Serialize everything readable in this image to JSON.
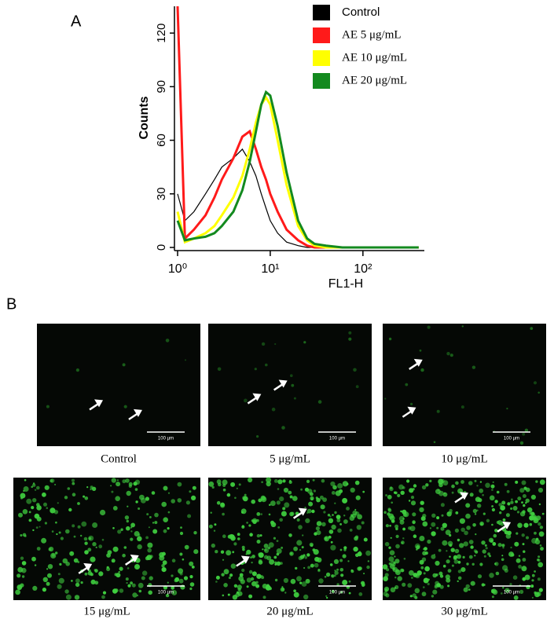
{
  "chart_data": {
    "type": "line",
    "panel_label": "A",
    "x_label": "FL1-H",
    "y_label": "Counts",
    "x": [
      1,
      1.2,
      1.5,
      2,
      2.5,
      3,
      4,
      5,
      6,
      7,
      8,
      9,
      10,
      12,
      15,
      20,
      25,
      30,
      40,
      60,
      100,
      200,
      400
    ],
    "xlim": [
      1,
      460
    ],
    "xscale": "log",
    "xticks": [
      {
        "value": 1,
        "label": "10⁰"
      },
      {
        "value": 10,
        "label": "10¹"
      },
      {
        "value": 100,
        "label": "10²"
      }
    ],
    "ylim": [
      0,
      135
    ],
    "yticks": [
      0,
      30,
      60,
      90,
      120
    ],
    "grid": false,
    "legend": "upper right",
    "series": [
      {
        "name": "Control",
        "color": "#000000",
        "values": [
          30,
          15,
          20,
          30,
          38,
          45,
          50,
          55,
          48,
          40,
          30,
          22,
          15,
          8,
          3,
          1,
          0,
          0,
          0,
          0,
          0,
          0,
          0
        ]
      },
      {
        "name": "AE 5 μg/mL",
        "color": "#ff1a1a",
        "values": [
          135,
          5,
          10,
          18,
          28,
          38,
          50,
          62,
          65,
          55,
          45,
          38,
          30,
          20,
          10,
          4,
          1,
          0,
          0,
          0,
          0,
          0,
          0
        ]
      },
      {
        "name": "AE 10 μg/mL",
        "color": "#ffff00",
        "values": [
          20,
          3,
          5,
          8,
          12,
          18,
          28,
          40,
          55,
          70,
          80,
          84,
          80,
          60,
          35,
          12,
          4,
          1,
          0,
          0,
          0,
          0,
          0
        ]
      },
      {
        "name": "AE 20 μg/mL",
        "color": "#138a1f",
        "values": [
          15,
          4,
          5,
          6,
          8,
          12,
          20,
          32,
          48,
          65,
          80,
          87,
          85,
          68,
          42,
          15,
          5,
          2,
          1,
          0,
          0,
          0,
          0
        ]
      }
    ]
  },
  "panel_b": {
    "label": "B",
    "micrographs": [
      {
        "caption": "Control",
        "scale_bar": "100 µm"
      },
      {
        "caption": "5 μg/mL",
        "scale_bar": "100 µm"
      },
      {
        "caption": "10 μg/mL",
        "scale_bar": "100 µm"
      },
      {
        "caption": "15 μg/mL",
        "scale_bar": "100 µm"
      },
      {
        "caption": "20 μg/mL",
        "scale_bar": "100 µm"
      },
      {
        "caption": "30 μg/mL",
        "scale_bar": "100 µm"
      }
    ]
  }
}
